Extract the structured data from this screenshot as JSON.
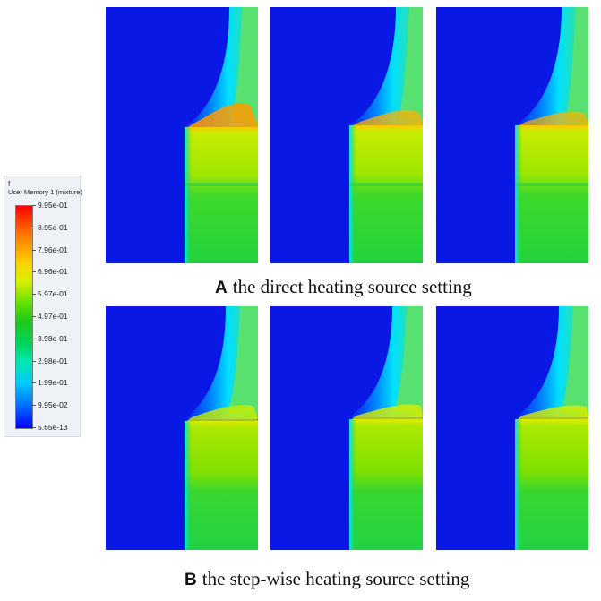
{
  "legend": {
    "variable": "f",
    "title": "User Memory 1 (mixture)",
    "labels": [
      "9.95e-01",
      "8.95e-01",
      "7.96e-01",
      "6.96e-01",
      "5.97e-01",
      "4.97e-01",
      "3.98e-01",
      "2.98e-01",
      "1.99e-01",
      "9.95e-02",
      "5.65e-13"
    ]
  },
  "captions": {
    "a": {
      "tag": "A",
      "text": "the direct heating source setting"
    },
    "b": {
      "tag": "B",
      "text": "the step-wise heating source setting"
    }
  },
  "colors": {
    "background_blue": "#0a18e6",
    "interface_cyan": "#00e0ff",
    "bulk_green": "#22d424",
    "upper_yellow_green": "#9be800",
    "hot_orange": "#ff9a00"
  }
}
